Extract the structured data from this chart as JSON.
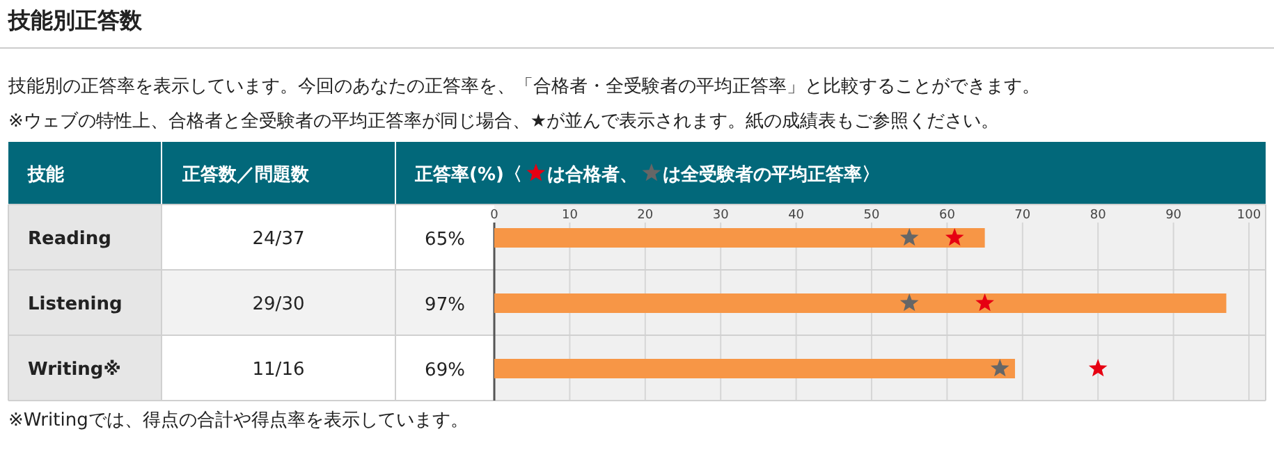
{
  "chart_data": {
    "type": "bar",
    "orientation": "horizontal",
    "title": "技能別正答数",
    "subtitle": "技能別の正答率を表示しています。今回のあなたの正答率を、「合格者・全受験者の平均正答率」と比較することができます。",
    "ylabel": "技能",
    "xlabel": "正答率(%)〈",
    "categories": [
      "Reading",
      "Listening",
      "Writing※"
    ],
    "x2lim": [
      0,
      100
    ],
    "x2ticks": [
      0,
      10,
      20,
      30,
      40,
      50,
      60,
      70,
      80,
      90,
      100
    ],
    "grid": "x",
    "legend": "top",
    "series": [
      {
        "type": "bar",
        "color": "#f79646",
        "values": [
          65,
          97,
          69
        ],
        "value_labels": [
          "65%",
          "97%",
          "69%"
        ]
      },
      {
        "type": "scatter",
        "name": "は合格者、",
        "color": "#e60012",
        "marker": "star",
        "values": [
          61,
          65,
          80
        ]
      },
      {
        "type": "scatter",
        "name": "は全受験者の平均正答率〉",
        "color": "#666666",
        "marker": "star",
        "values": [
          55,
          55,
          67
        ]
      }
    ],
    "annotations": [
      "※ウェブの特性上、合格者と全受験者の平均正答率が同じ場合、★が並んで表示されます。紙の成績表もご参照ください。",
      "正答数／問題数",
      "24/37",
      "29/30",
      "11/16",
      "※Writingでは、得点の合計や得点率を表示しています。"
    ]
  }
}
